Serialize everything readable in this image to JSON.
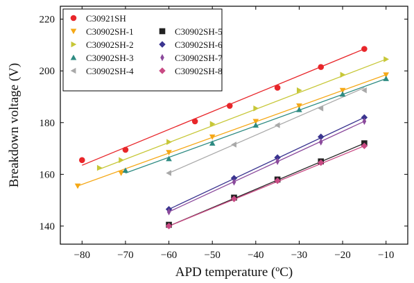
{
  "chart_data": {
    "type": "scatter",
    "title": "",
    "xlabel": "APD temperature (ºC)",
    "ylabel": "Breakdown voltage (V)",
    "xlim": [
      -85,
      -5
    ],
    "ylim": [
      133,
      225
    ],
    "xticks": [
      -80,
      -70,
      -60,
      -50,
      -40,
      -30,
      -20,
      -10
    ],
    "yticks": [
      140,
      160,
      180,
      200,
      220
    ],
    "grid": false,
    "legend_position": "top-left",
    "series": [
      {
        "name": "C30921SH",
        "color": "#e8262a",
        "marker": "circle",
        "x": [
          -80,
          -70,
          -54,
          -46,
          -35,
          -25,
          -15
        ],
        "y": [
          165.5,
          169.5,
          180.5,
          186.5,
          193.5,
          201.5,
          208.5
        ],
        "fit": [
          [
            -80,
            163.5
          ],
          [
            -15,
            208.5
          ]
        ]
      },
      {
        "name": "C30902SH-1",
        "color": "#f5a816",
        "marker": "triangle-down",
        "x": [
          -81,
          -71,
          -60,
          -50,
          -40,
          -30,
          -20,
          -10
        ],
        "y": [
          155.5,
          160.5,
          168.5,
          174.5,
          180.5,
          186.5,
          192.5,
          198.5
        ],
        "fit": [
          [
            -81,
            155.5
          ],
          [
            -10,
            198.5
          ]
        ]
      },
      {
        "name": "C30902SH-2",
        "color": "#c7c737",
        "marker": "triangle-right",
        "x": [
          -76,
          -71,
          -60,
          -50,
          -40,
          -30,
          -20,
          -10
        ],
        "y": [
          162.5,
          165.5,
          172.5,
          179.5,
          185.5,
          192.5,
          198.5,
          204.5
        ],
        "fit": [
          [
            -76,
            162.0
          ],
          [
            -10,
            204.5
          ]
        ]
      },
      {
        "name": "C30902SH-3",
        "color": "#2e8b82",
        "marker": "triangle-up",
        "x": [
          -70,
          -60,
          -50,
          -40,
          -30,
          -20,
          -10
        ],
        "y": [
          161.5,
          166.0,
          172.0,
          179.0,
          185.0,
          191.0,
          197.0
        ],
        "fit": [
          [
            -70,
            160.5
          ],
          [
            -10,
            197.0
          ]
        ]
      },
      {
        "name": "C30902SH-4",
        "color": "#a9a9a9",
        "marker": "triangle-left",
        "x": [
          -60,
          -45,
          -35,
          -25,
          -15
        ],
        "y": [
          160.5,
          171.5,
          179.0,
          185.5,
          192.5
        ],
        "fit": [
          [
            -60,
            160.5
          ],
          [
            -15,
            193.5
          ]
        ]
      },
      {
        "name": "C30902SH-5",
        "color": "#222222",
        "marker": "square",
        "x": [
          -60,
          -45,
          -35,
          -25,
          -15
        ],
        "y": [
          140.5,
          151.0,
          158.0,
          165.0,
          172.0
        ],
        "fit": [
          [
            -60,
            140.0
          ],
          [
            -15,
            172.0
          ]
        ]
      },
      {
        "name": "C30902SH-6",
        "color": "#3b3590",
        "marker": "diamond",
        "x": [
          -60,
          -45,
          -35,
          -25,
          -15
        ],
        "y": [
          146.5,
          158.5,
          166.5,
          174.5,
          182.0
        ],
        "fit": [
          [
            -60,
            146.5
          ],
          [
            -15,
            182.0
          ]
        ]
      },
      {
        "name": "C30902SH-7",
        "color": "#8b4a9c",
        "marker": "thin-diamond",
        "x": [
          -60,
          -45,
          -35,
          -25,
          -15
        ],
        "y": [
          145.5,
          157.0,
          165.0,
          172.5,
          180.5
        ],
        "fit": [
          [
            -60,
            145.5
          ],
          [
            -15,
            180.5
          ]
        ]
      },
      {
        "name": "C30902SH-8",
        "color": "#c94a84",
        "marker": "diamond",
        "x": [
          -60,
          -45,
          -35,
          -25,
          -15
        ],
        "y": [
          140.0,
          150.5,
          157.5,
          164.5,
          171.0
        ],
        "fit": [
          [
            -60,
            140.0
          ],
          [
            -15,
            171.0
          ]
        ]
      }
    ]
  }
}
